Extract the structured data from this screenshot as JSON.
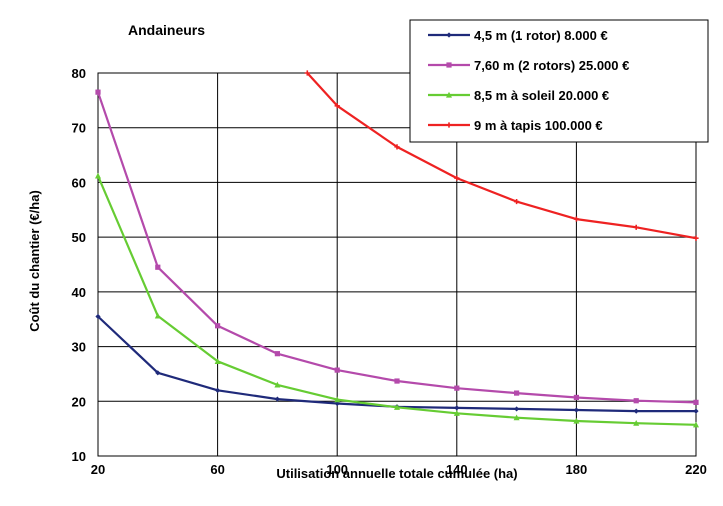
{
  "chart_data": {
    "type": "line",
    "title": "Andaineurs",
    "xlabel": "Utilisation annuelle totale cumulée (ha)",
    "ylabel": "Coût du chantier (€/ha)",
    "xlim": [
      20,
      220
    ],
    "ylim": [
      10,
      80
    ],
    "x_ticks": [
      20,
      60,
      100,
      140,
      180,
      220
    ],
    "y_ticks": [
      10,
      20,
      30,
      40,
      50,
      60,
      70,
      80
    ],
    "grid": true,
    "legend_position": "top-right",
    "series": [
      {
        "name": "4,5 m (1 rotor) 8.000 €",
        "color": "#1f2a7a",
        "marker": "diamond",
        "x": [
          20,
          40,
          60,
          80,
          100,
          120,
          140,
          160,
          180,
          200,
          220
        ],
        "y": [
          35.5,
          25.2,
          22.0,
          20.4,
          19.6,
          19.0,
          18.8,
          18.6,
          18.4,
          18.2,
          18.2
        ]
      },
      {
        "name": "7,60 m (2 rotors) 25.000 €",
        "color": "#b44aab",
        "marker": "square",
        "x": [
          20,
          40,
          60,
          80,
          100,
          120,
          140,
          160,
          180,
          200,
          220
        ],
        "y": [
          76.5,
          44.5,
          33.8,
          28.7,
          25.7,
          23.7,
          22.4,
          21.5,
          20.7,
          20.1,
          19.8
        ]
      },
      {
        "name": "8,5 m à soleil 20.000 €",
        "color": "#66cc33",
        "marker": "triangle",
        "x": [
          20,
          40,
          60,
          80,
          100,
          120,
          140,
          160,
          180,
          200,
          220
        ],
        "y": [
          61.2,
          35.6,
          27.3,
          23.0,
          20.3,
          18.9,
          17.8,
          17.0,
          16.4,
          16.0,
          15.7
        ]
      },
      {
        "name": "9 m à tapis 100.000 €",
        "color": "#ee2222",
        "marker": "cross",
        "x": [
          90,
          100,
          120,
          140,
          160,
          180,
          200,
          220
        ],
        "y": [
          80.0,
          74.0,
          66.5,
          60.8,
          56.5,
          53.3,
          51.8,
          49.8
        ]
      }
    ]
  }
}
